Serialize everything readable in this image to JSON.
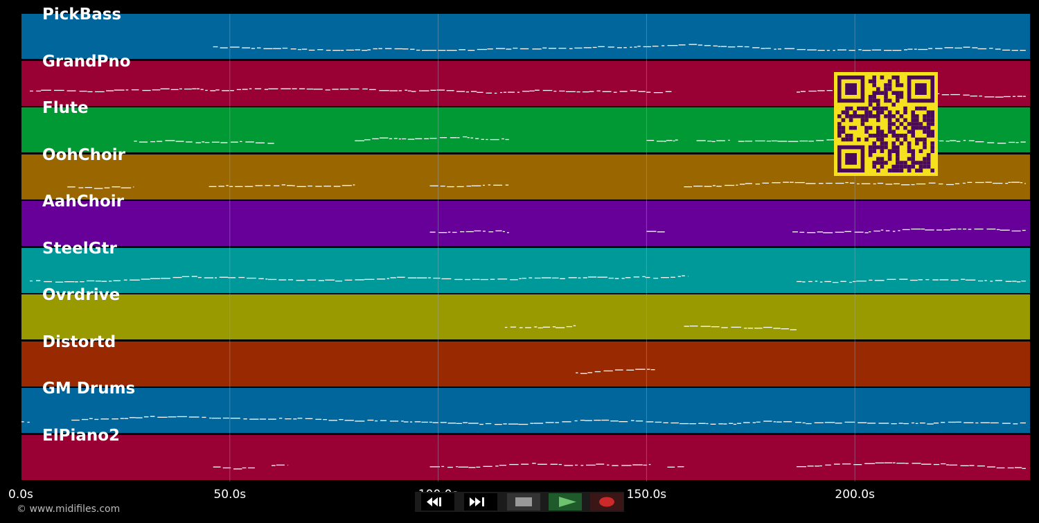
{
  "colors": {
    "background": "#000000",
    "note": "#ffffff",
    "grid": "#9aa8b8",
    "qr_fg": "#4a0a5a",
    "qr_bg": "#f5e11e"
  },
  "tracks": [
    {
      "name": "PickBass",
      "color": "#00669c"
    },
    {
      "name": "GrandPno",
      "color": "#990033"
    },
    {
      "name": "Flute",
      "color": "#009933"
    },
    {
      "name": "OohChoir",
      "color": "#996600"
    },
    {
      "name": "AahChoir",
      "color": "#660099"
    },
    {
      "name": "SteelGtr",
      "color": "#009999"
    },
    {
      "name": "Ovrdrive",
      "color": "#999900"
    },
    {
      "name": "Distortd",
      "color": "#992900"
    },
    {
      "name": "GM Drums",
      "color": "#00669c"
    },
    {
      "name": "ElPiano2",
      "color": "#990033"
    }
  ],
  "timeline": {
    "ticks": [
      "0.0s",
      "50.0s",
      "100.0s",
      "150.0s",
      "200.0s"
    ],
    "tick_values": [
      0,
      50,
      100,
      150,
      200
    ],
    "duration_s": 242
  },
  "activity": [
    [
      [
        46,
        241
      ]
    ],
    [
      [
        2,
        156
      ],
      [
        186,
        241
      ]
    ],
    [
      [
        27,
        61
      ],
      [
        80,
        117
      ],
      [
        150,
        158
      ],
      [
        162,
        170
      ],
      [
        172,
        241
      ]
    ],
    [
      [
        11,
        27
      ],
      [
        45,
        80
      ],
      [
        98,
        117
      ],
      [
        159,
        241
      ]
    ],
    [
      [
        98,
        117
      ],
      [
        150,
        155
      ],
      [
        185,
        241
      ]
    ],
    [
      [
        2,
        160
      ],
      [
        186,
        241
      ]
    ],
    [
      [
        116,
        133
      ],
      [
        159,
        186
      ]
    ],
    [
      [
        133,
        152
      ]
    ],
    [
      [
        0,
        2
      ],
      [
        12,
        241
      ]
    ],
    [
      [
        46,
        56
      ],
      [
        60,
        64
      ],
      [
        98,
        151
      ],
      [
        155,
        159
      ],
      [
        186,
        241
      ]
    ]
  ],
  "transport": {
    "buttons": [
      {
        "name": "rewind",
        "icon": "rewind-icon"
      },
      {
        "name": "fast-forward",
        "icon": "fast-forward-icon"
      },
      {
        "name": "stop",
        "icon": "stop-icon"
      },
      {
        "name": "play",
        "icon": "play-icon"
      },
      {
        "name": "record",
        "icon": "record-icon"
      }
    ]
  },
  "copyright": "© www.midifiles.com"
}
